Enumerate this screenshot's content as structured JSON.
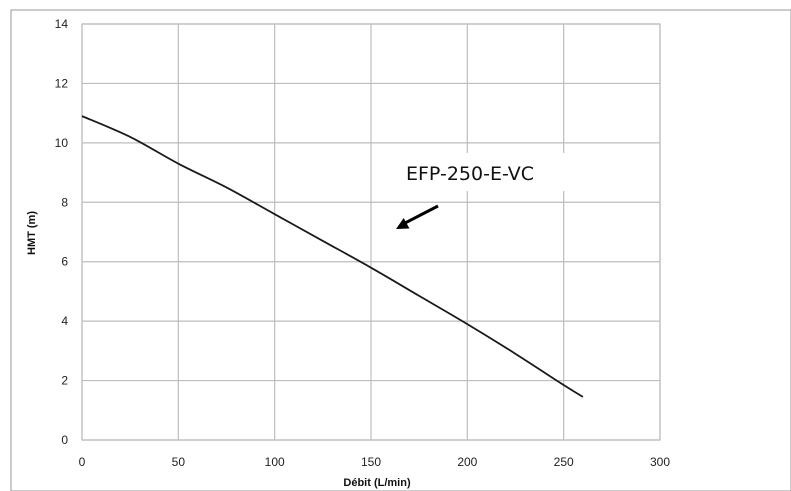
{
  "chart_data": {
    "type": "line",
    "xlabel": "Débit (L/min)",
    "ylabel": "HMT (m)",
    "xlim": [
      0,
      300
    ],
    "ylim": [
      0,
      14
    ],
    "xticks": [
      0,
      50,
      100,
      150,
      200,
      250,
      300
    ],
    "yticks": [
      0,
      2,
      4,
      6,
      8,
      10,
      12,
      14
    ],
    "grid": true,
    "series": [
      {
        "name": "EFP-250-E-VC",
        "color": "#1a1a1a",
        "x": [
          0,
          25,
          50,
          75,
          100,
          125,
          150,
          175,
          200,
          225,
          250,
          260
        ],
        "y": [
          10.9,
          10.2,
          9.3,
          8.5,
          7.6,
          6.7,
          5.8,
          4.85,
          3.9,
          2.9,
          1.85,
          1.45
        ]
      }
    ],
    "annotations": [
      {
        "text": "EFP-250-E-VC",
        "points_to": {
          "x": 163,
          "y": 7.1
        }
      }
    ]
  }
}
